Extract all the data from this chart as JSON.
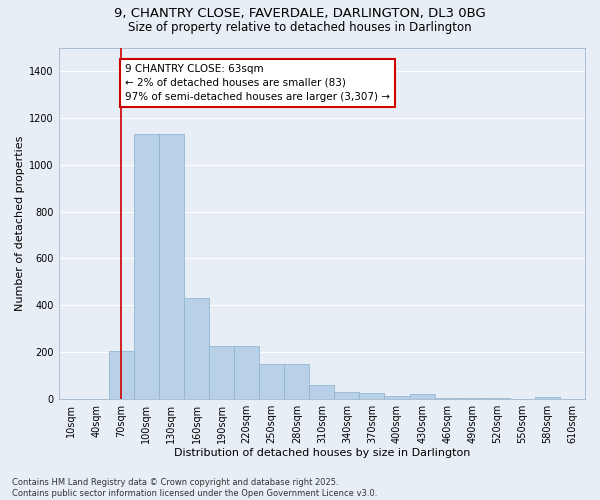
{
  "title_line1": "9, CHANTRY CLOSE, FAVERDALE, DARLINGTON, DL3 0BG",
  "title_line2": "Size of property relative to detached houses in Darlington",
  "xlabel": "Distribution of detached houses by size in Darlington",
  "ylabel": "Number of detached properties",
  "categories": [
    "10sqm",
    "40sqm",
    "70sqm",
    "100sqm",
    "130sqm",
    "160sqm",
    "190sqm",
    "220sqm",
    "250sqm",
    "280sqm",
    "310sqm",
    "340sqm",
    "370sqm",
    "400sqm",
    "430sqm",
    "460sqm",
    "490sqm",
    "520sqm",
    "550sqm",
    "580sqm",
    "610sqm"
  ],
  "values": [
    0,
    0,
    205,
    1130,
    1130,
    430,
    225,
    225,
    150,
    150,
    60,
    30,
    25,
    15,
    20,
    5,
    5,
    5,
    0,
    10,
    0
  ],
  "bar_color": "#b8d0e8",
  "bar_edge_color": "#8ab0cc",
  "bar_linewidth": 0.5,
  "vline_x_index": 2,
  "vline_color": "#cc0000",
  "annotation_box_text": "9 CHANTRY CLOSE: 63sqm\n← 2% of detached houses are smaller (83)\n97% of semi-detached houses are larger (3,307) →",
  "ylim": [
    0,
    1500
  ],
  "yticks": [
    0,
    200,
    400,
    600,
    800,
    1000,
    1200,
    1400
  ],
  "background_color": "#e8eef5",
  "grid_color": "#ffffff",
  "footnote": "Contains HM Land Registry data © Crown copyright and database right 2025.\nContains public sector information licensed under the Open Government Licence v3.0.",
  "title_fontsize": 9.5,
  "subtitle_fontsize": 8.5,
  "xlabel_fontsize": 8,
  "ylabel_fontsize": 8,
  "tick_fontsize": 7,
  "annotation_fontsize": 7.5,
  "footnote_fontsize": 6
}
